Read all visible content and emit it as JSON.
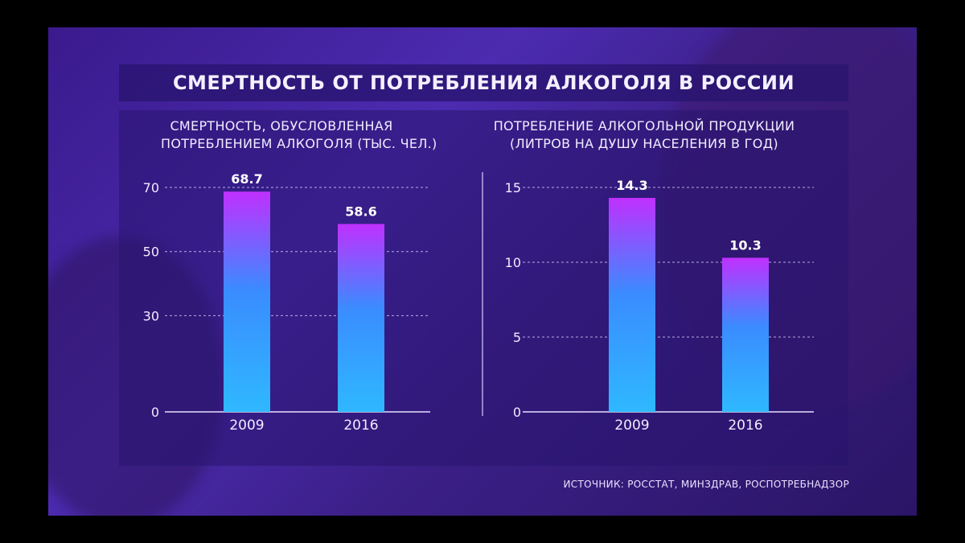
{
  "title": "СМЕРТНОСТЬ ОТ ПОТРЕБЛЕНИЯ АЛКОГОЛЯ В РОССИИ",
  "source": "ИСТОЧНИК: РОССТАТ, МИНЗДРАВ, РОСПОТРЕБНАДЗОР",
  "colors": {
    "bar_top": "#c030ff",
    "bar_mid": "#3a8cff",
    "bar_bottom": "#2fb8ff"
  },
  "chart_data": [
    {
      "type": "bar",
      "title_lines": [
        "СМЕРТНОСТЬ, ОБУСЛОВЛЕННАЯ",
        "ПОТРЕБЛЕНИЕМ АЛКОГОЛЯ (ТЫС. ЧЕЛ.)"
      ],
      "categories": [
        "2009",
        "2016"
      ],
      "values": [
        68.7,
        58.6
      ],
      "value_labels": [
        "68.7",
        "58.6"
      ],
      "yticks": [
        0,
        30,
        50,
        70
      ],
      "ylim": [
        0,
        70
      ],
      "grid": true
    },
    {
      "type": "bar",
      "title_lines": [
        "ПОТРЕБЛЕНИЕ АЛКОГОЛЬНОЙ ПРОДУКЦИИ",
        "(ЛИТРОВ НА ДУШУ НАСЕЛЕНИЯ В ГОД)"
      ],
      "categories": [
        "2009",
        "2016"
      ],
      "values": [
        14.3,
        10.3
      ],
      "value_labels": [
        "14.3",
        "10.3"
      ],
      "yticks": [
        0,
        5,
        10,
        15
      ],
      "ylim": [
        0,
        15
      ],
      "grid": true
    }
  ]
}
